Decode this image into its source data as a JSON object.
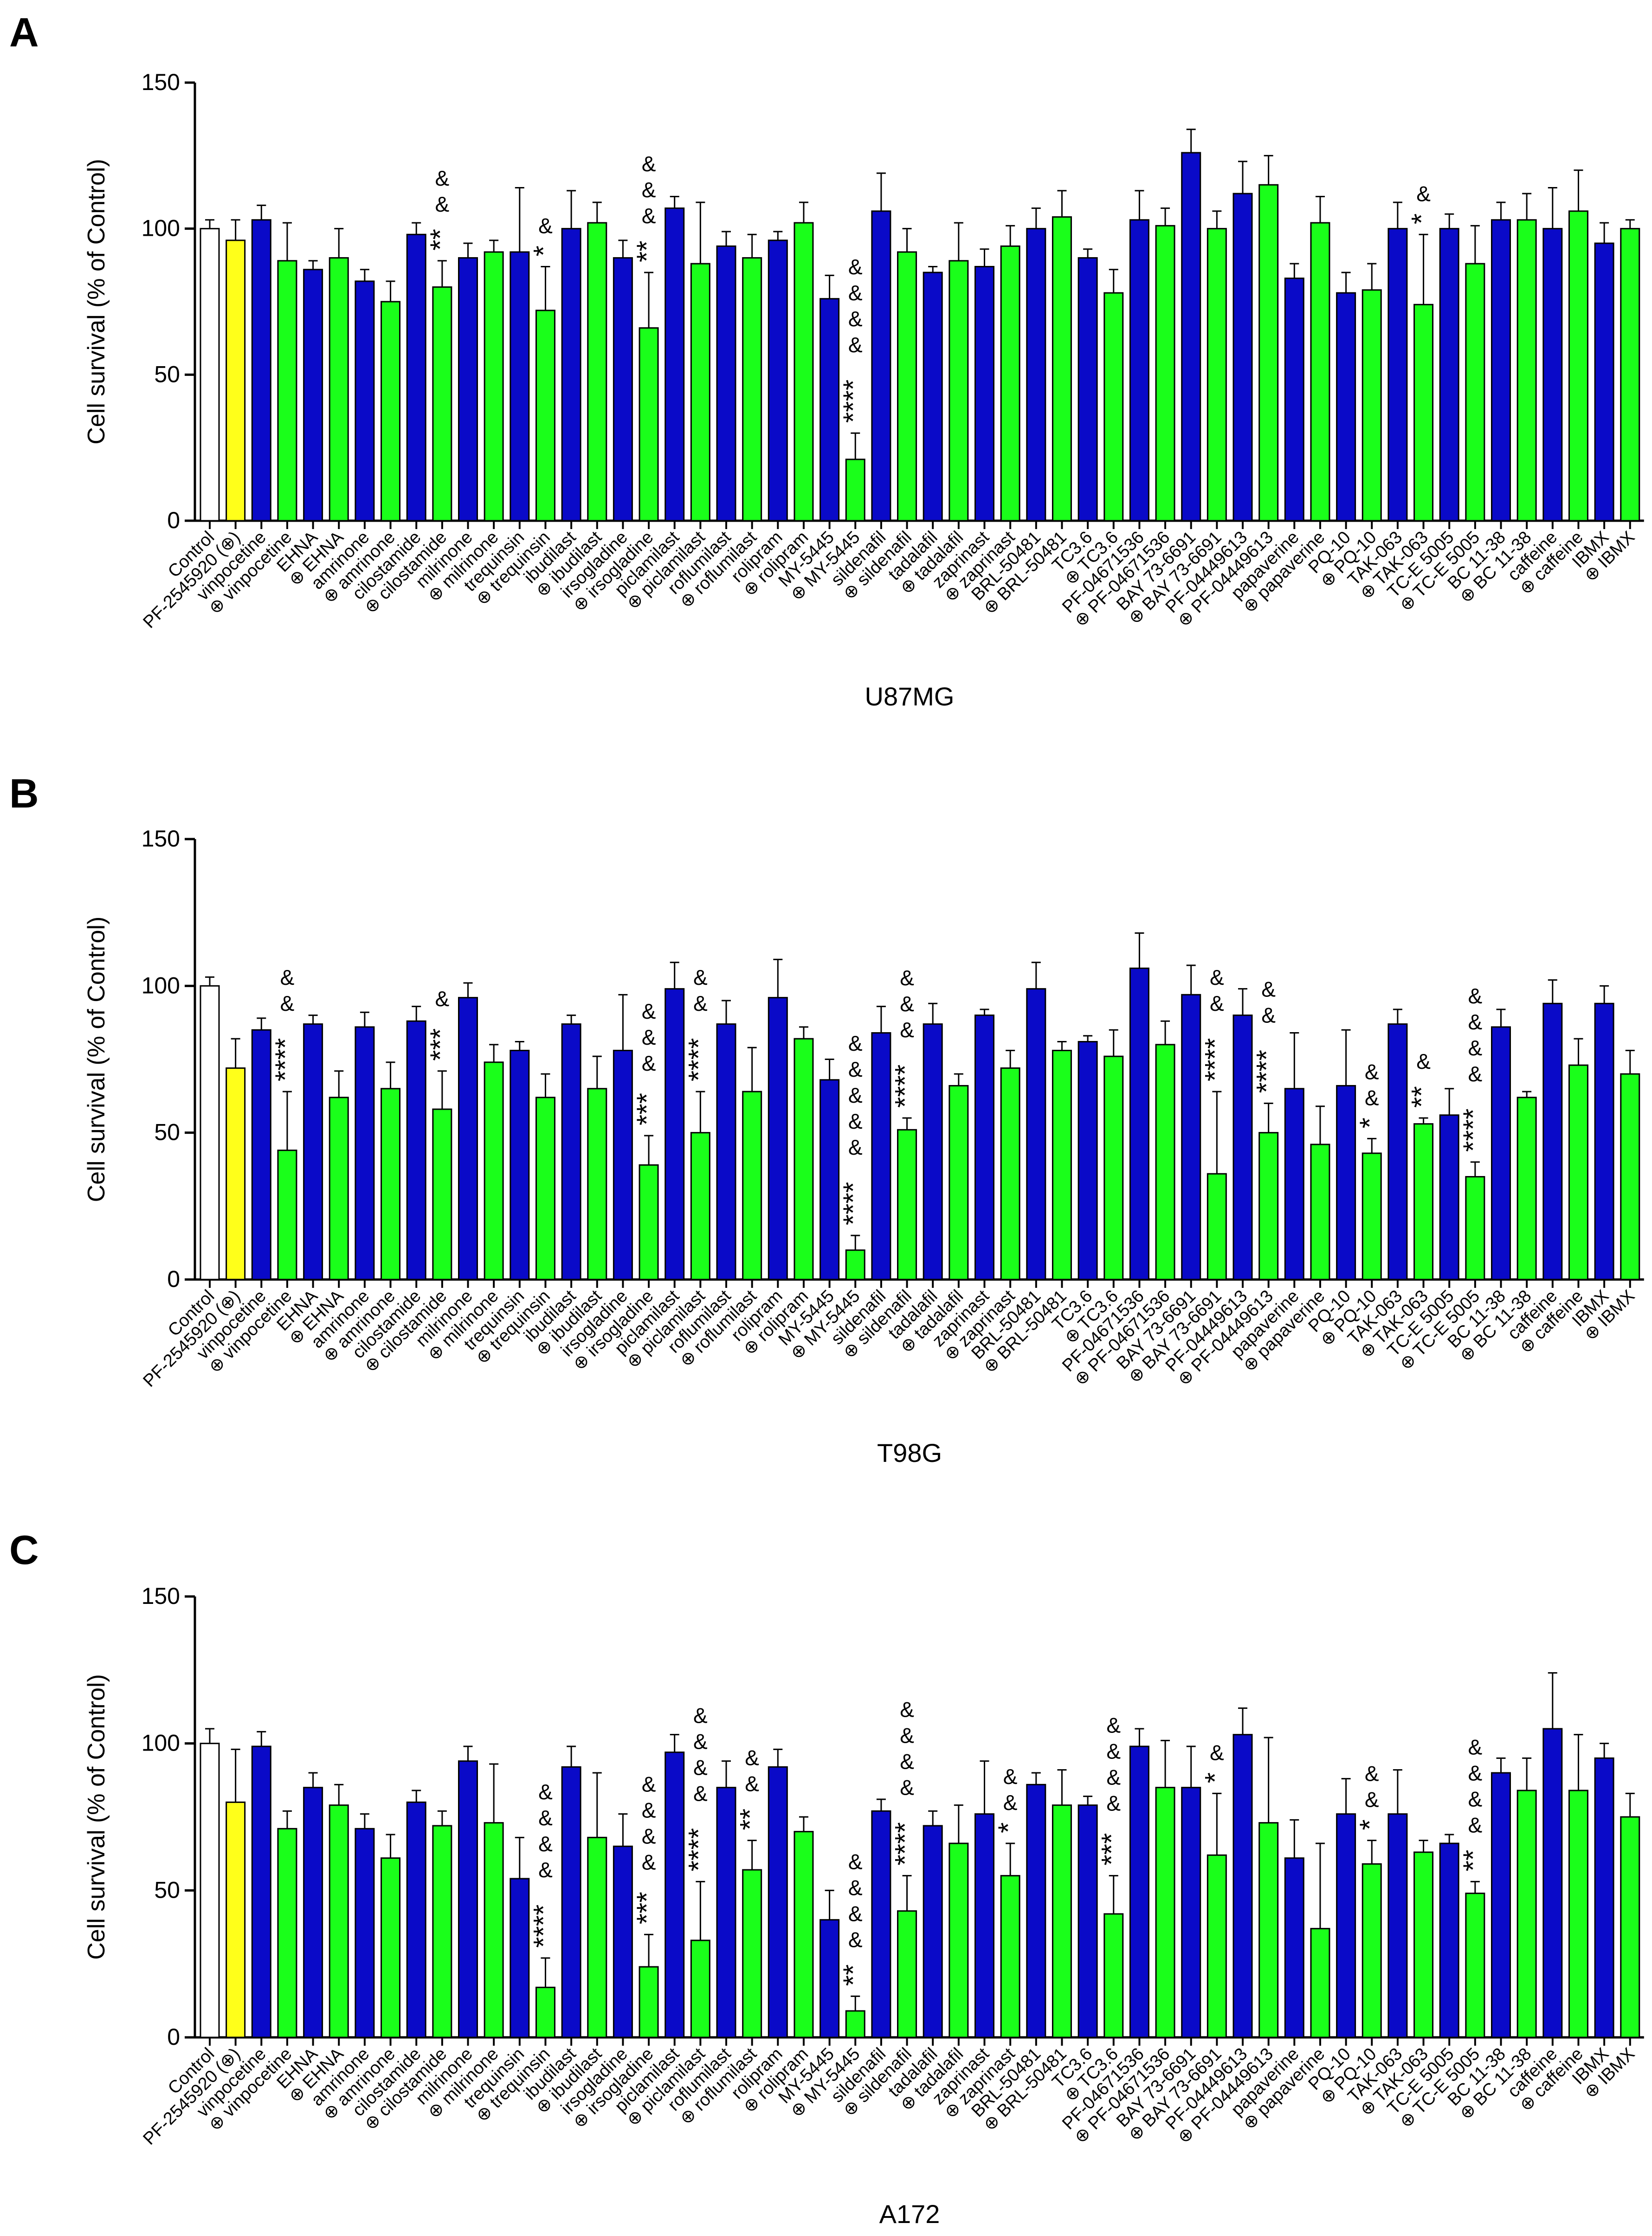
{
  "figure": {
    "categories": [
      "Control",
      "PF-2545920 (⊕)",
      "vinpocetine",
      "⊕ vinpocetine",
      "EHNA",
      "⊕ EHNA",
      "amrinone",
      "⊕ amrinone",
      "cilostamide",
      "⊕ cilostamide",
      "milrinone",
      "⊕ milrinone",
      "trequinsin",
      "⊕ trequinsin",
      "ibudilast",
      "⊕ ibudilast",
      "irsogladine",
      "⊕ irsogladine",
      "piclamilast",
      "⊕ piclamilast",
      "roflumilast",
      "⊕ roflumilast",
      "rolipram",
      "⊕ rolipram",
      "MY-5445",
      "⊕ MY-5445",
      "sildenafil",
      "⊕ sildenafil",
      "tadalafil",
      "⊕ tadalafil",
      "zaprinast",
      "⊕ zaprinast",
      "BRL-50481",
      "⊕ BRL-50481",
      "TC3.6",
      "⊕ TC3.6",
      "PF-04671536",
      "⊕ PF-04671536",
      "BAY 73-6691",
      "⊕ BAY 73-6691",
      "PF-04449613",
      "⊕ PF-04449613",
      "papaverine",
      "⊕ papaverine",
      "PQ-10",
      "⊕ PQ-10",
      "TAK-063",
      "⊕ TAK-063",
      "TC-E 5005",
      "⊕ TC-E 5005",
      "BC 11-38",
      "⊕ BC 11-38",
      "caffeine",
      "⊕ caffeine",
      "IBMX",
      "⊕ IBMX"
    ],
    "colors": {
      "control": "#ffffff",
      "pf": "#ffff1a",
      "single": "#0a0ac8",
      "combo": "#1aff1a",
      "outline": "#000000"
    }
  },
  "chart_data": [
    {
      "type": "bar",
      "panel": "A",
      "title": "U87MG",
      "ylabel": "Cell survival (% of Control)",
      "ylim": [
        0,
        150
      ],
      "yticks": [
        0,
        50,
        100,
        150
      ],
      "values": [
        100,
        96,
        103,
        89,
        86,
        90,
        82,
        75,
        98,
        80,
        90,
        92,
        92,
        72,
        100,
        102,
        90,
        66,
        107,
        88,
        94,
        90,
        96,
        102,
        76,
        21,
        106,
        92,
        85,
        89,
        87,
        94,
        100,
        104,
        90,
        78,
        103,
        101,
        126,
        100,
        112,
        115,
        83,
        102,
        78,
        79,
        100,
        74,
        100,
        88,
        103,
        103,
        100,
        106,
        95,
        100
      ],
      "errors": [
        3,
        7,
        5,
        13,
        3,
        10,
        4,
        7,
        4,
        9,
        5,
        4,
        22,
        15,
        13,
        7,
        6,
        19,
        4,
        21,
        5,
        8,
        3,
        7,
        8,
        9,
        13,
        8,
        2,
        13,
        6,
        7,
        7,
        9,
        3,
        8,
        10,
        6,
        8,
        6,
        11,
        10,
        5,
        9,
        7,
        9,
        9,
        24,
        5,
        13,
        6,
        9,
        14,
        14,
        7,
        3
      ],
      "annotations": [
        {
          "index": 9,
          "amp": 2,
          "stars": "**"
        },
        {
          "index": 13,
          "amp": 1,
          "stars": "*"
        },
        {
          "index": 17,
          "amp": 3,
          "stars": "**"
        },
        {
          "index": 25,
          "amp": 4,
          "stars": "****"
        },
        {
          "index": 47,
          "amp": 1,
          "stars": "*"
        }
      ]
    },
    {
      "type": "bar",
      "panel": "B",
      "title": "T98G",
      "ylabel": "Cell survival (% of Control)",
      "ylim": [
        0,
        150
      ],
      "yticks": [
        0,
        50,
        100,
        150
      ],
      "values": [
        100,
        72,
        85,
        44,
        87,
        62,
        86,
        65,
        88,
        58,
        96,
        74,
        78,
        62,
        87,
        65,
        78,
        39,
        99,
        50,
        87,
        64,
        96,
        82,
        68,
        10,
        84,
        51,
        87,
        66,
        90,
        72,
        99,
        78,
        81,
        76,
        106,
        80,
        97,
        36,
        90,
        50,
        65,
        46,
        66,
        43,
        87,
        53,
        56,
        35,
        86,
        62,
        94,
        73,
        94,
        70
      ],
      "errors": [
        3,
        10,
        4,
        20,
        3,
        9,
        5,
        9,
        5,
        13,
        5,
        6,
        3,
        8,
        3,
        11,
        19,
        10,
        9,
        14,
        8,
        15,
        13,
        4,
        7,
        5,
        9,
        4,
        7,
        4,
        2,
        6,
        9,
        3,
        2,
        9,
        12,
        8,
        10,
        28,
        9,
        10,
        19,
        13,
        19,
        5,
        5,
        2,
        9,
        5,
        6,
        2,
        8,
        9,
        6,
        8
      ],
      "annotations": [
        {
          "index": 3,
          "amp": 2,
          "stars": "****"
        },
        {
          "index": 9,
          "amp": 1,
          "stars": "***"
        },
        {
          "index": 17,
          "amp": 3,
          "stars": "***"
        },
        {
          "index": 19,
          "amp": 2,
          "stars": "****"
        },
        {
          "index": 25,
          "amp": 5,
          "stars": "****"
        },
        {
          "index": 27,
          "amp": 3,
          "stars": "****"
        },
        {
          "index": 39,
          "amp": 2,
          "stars": "****"
        },
        {
          "index": 41,
          "amp": 2,
          "stars": "****"
        },
        {
          "index": 45,
          "amp": 2,
          "stars": "*"
        },
        {
          "index": 47,
          "amp": 1,
          "stars": "**"
        },
        {
          "index": 49,
          "amp": 4,
          "stars": "****"
        }
      ]
    },
    {
      "type": "bar",
      "panel": "C",
      "title": "A172",
      "ylabel": "Cell survival (% of Control)",
      "ylim": [
        0,
        150
      ],
      "yticks": [
        0,
        50,
        100,
        150
      ],
      "values": [
        100,
        80,
        99,
        71,
        85,
        79,
        71,
        61,
        80,
        72,
        94,
        73,
        54,
        17,
        92,
        68,
        65,
        24,
        97,
        33,
        85,
        57,
        92,
        70,
        40,
        9,
        77,
        43,
        72,
        66,
        76,
        55,
        86,
        79,
        79,
        42,
        99,
        85,
        85,
        62,
        103,
        73,
        61,
        37,
        76,
        59,
        76,
        63,
        66,
        49,
        90,
        84,
        105,
        84,
        95,
        75
      ],
      "errors": [
        5,
        18,
        5,
        6,
        5,
        7,
        5,
        8,
        4,
        5,
        5,
        20,
        14,
        10,
        7,
        22,
        11,
        11,
        6,
        20,
        9,
        10,
        6,
        5,
        10,
        5,
        4,
        12,
        5,
        13,
        18,
        11,
        4,
        12,
        3,
        13,
        6,
        16,
        14,
        21,
        9,
        29,
        13,
        29,
        12,
        8,
        15,
        4,
        3,
        4,
        5,
        11,
        19,
        19,
        5,
        8
      ],
      "annotations": [
        {
          "index": 13,
          "amp": 4,
          "stars": "****"
        },
        {
          "index": 17,
          "amp": 4,
          "stars": "***"
        },
        {
          "index": 19,
          "amp": 4,
          "stars": "****"
        },
        {
          "index": 21,
          "amp": 2,
          "stars": "**"
        },
        {
          "index": 25,
          "amp": 4,
          "stars": "**"
        },
        {
          "index": 27,
          "amp": 4,
          "stars": "****"
        },
        {
          "index": 31,
          "amp": 2,
          "stars": "*"
        },
        {
          "index": 35,
          "amp": 4,
          "stars": "***"
        },
        {
          "index": 39,
          "amp": 1,
          "stars": "*"
        },
        {
          "index": 45,
          "amp": 2,
          "stars": "*"
        },
        {
          "index": 49,
          "amp": 4,
          "stars": "**"
        }
      ]
    }
  ]
}
